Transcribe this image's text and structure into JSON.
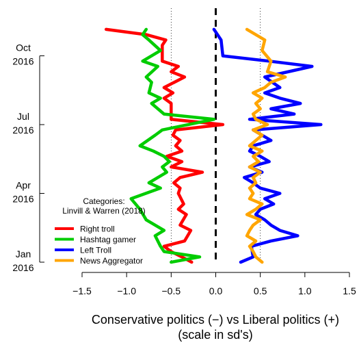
{
  "chart_data": {
    "type": "line",
    "orientation": "horizontal-x-value, vertical-y-date",
    "title": "",
    "xlabel": "Conservative politics (−) vs Liberal politics (+)",
    "xlabel_sub": "(scale in sd's)",
    "ylabel": "",
    "xlim": [
      -1.5,
      1.5
    ],
    "x_ticks": [
      -1.5,
      -1.0,
      -0.5,
      0.0,
      0.5,
      1.0,
      1.5
    ],
    "x_tick_labels": [
      "−1.5",
      "−1.0",
      "−0.5",
      "0.0",
      "0.5",
      "1.0",
      "1.5"
    ],
    "y_ticks": [
      {
        "label1": "Jan",
        "label2": "2016",
        "t": 0
      },
      {
        "label1": "Apr",
        "label2": "2016",
        "t": 13
      },
      {
        "label1": "Jul",
        "label2": "2016",
        "t": 26
      },
      {
        "label1": "Oct",
        "label2": "2016",
        "t": 39
      }
    ],
    "y_unit": "weeks since Jan 2016",
    "ylim": [
      0,
      48
    ],
    "reference_lines": {
      "dashed_bold": 0.0,
      "dotted": [
        -0.5,
        0.5
      ]
    },
    "legend": {
      "title_line1": "Categories:",
      "title_line2": "Linvill & Warren (2018)",
      "placement": "bottom-left"
    },
    "series": [
      {
        "name": "Right troll",
        "color": "#ff0000",
        "points": [
          [
            -0.27,
            0
          ],
          [
            -0.38,
            1
          ],
          [
            -0.5,
            2
          ],
          [
            -0.58,
            3
          ],
          [
            -0.35,
            4
          ],
          [
            -0.28,
            6
          ],
          [
            -0.4,
            7
          ],
          [
            -0.33,
            9
          ],
          [
            -0.42,
            10
          ],
          [
            -0.36,
            11
          ],
          [
            -0.42,
            13
          ],
          [
            -0.4,
            14
          ],
          [
            -0.47,
            15
          ],
          [
            -0.4,
            16
          ],
          [
            -0.15,
            17
          ],
          [
            -0.5,
            18
          ],
          [
            -0.38,
            19
          ],
          [
            -0.55,
            20
          ],
          [
            -0.38,
            21
          ],
          [
            -0.45,
            22
          ],
          [
            -0.4,
            23
          ],
          [
            -0.48,
            24
          ],
          [
            -0.45,
            25
          ],
          [
            0.08,
            26
          ],
          [
            -0.5,
            27
          ],
          [
            -0.5,
            30
          ],
          [
            -0.58,
            31
          ],
          [
            -0.48,
            32
          ],
          [
            -0.58,
            33
          ],
          [
            -0.35,
            35
          ],
          [
            -0.5,
            36
          ],
          [
            -0.42,
            37
          ],
          [
            -0.6,
            38
          ],
          [
            -0.6,
            41
          ],
          [
            -0.56,
            42
          ],
          [
            -0.78,
            43
          ],
          [
            -1.23,
            44
          ]
        ]
      },
      {
        "name": "Hashtag gamer",
        "color": "#00cc00",
        "points": [
          [
            -0.5,
            0
          ],
          [
            -0.18,
            1
          ],
          [
            -0.58,
            2
          ],
          [
            -0.62,
            3
          ],
          [
            -0.68,
            5
          ],
          [
            -0.58,
            6
          ],
          [
            -0.78,
            8
          ],
          [
            -0.85,
            10
          ],
          [
            -0.95,
            12
          ],
          [
            -0.62,
            14
          ],
          [
            -0.75,
            15
          ],
          [
            -0.55,
            17
          ],
          [
            -0.6,
            18
          ],
          [
            -0.52,
            19
          ],
          [
            -0.58,
            20
          ],
          [
            -0.7,
            21
          ],
          [
            -0.85,
            22
          ],
          [
            -0.68,
            24
          ],
          [
            -0.6,
            25
          ],
          [
            -0.02,
            27
          ],
          [
            -0.58,
            28
          ],
          [
            -0.72,
            30
          ],
          [
            -0.62,
            31
          ],
          [
            -0.75,
            32
          ],
          [
            -0.72,
            34
          ],
          [
            -0.78,
            35
          ],
          [
            -0.65,
            37
          ],
          [
            -0.82,
            38
          ],
          [
            -0.62,
            40
          ],
          [
            -0.75,
            42
          ],
          [
            -0.82,
            43
          ],
          [
            -0.78,
            44
          ]
        ]
      },
      {
        "name": "Left Troll",
        "color": "#0000ff",
        "points": [
          [
            0.28,
            0
          ],
          [
            0.42,
            1
          ],
          [
            0.4,
            3
          ],
          [
            0.62,
            4
          ],
          [
            0.92,
            5
          ],
          [
            0.72,
            6
          ],
          [
            0.62,
            7
          ],
          [
            0.55,
            8
          ],
          [
            0.45,
            9
          ],
          [
            0.5,
            10
          ],
          [
            0.65,
            11
          ],
          [
            0.55,
            12
          ],
          [
            0.72,
            13
          ],
          [
            0.5,
            14
          ],
          [
            0.42,
            15
          ],
          [
            0.32,
            16
          ],
          [
            0.52,
            17
          ],
          [
            0.38,
            18
          ],
          [
            0.6,
            19
          ],
          [
            0.5,
            20
          ],
          [
            0.38,
            21
          ],
          [
            0.42,
            22
          ],
          [
            0.62,
            23
          ],
          [
            0.52,
            24
          ],
          [
            0.42,
            25
          ],
          [
            1.18,
            26
          ],
          [
            0.38,
            27
          ],
          [
            0.88,
            28
          ],
          [
            0.62,
            29
          ],
          [
            0.95,
            30
          ],
          [
            0.72,
            31
          ],
          [
            0.55,
            32
          ],
          [
            0.72,
            33
          ],
          [
            0.55,
            35
          ],
          [
            1.08,
            37
          ],
          [
            0.6,
            38
          ],
          [
            0.08,
            39
          ],
          [
            0.06,
            42
          ],
          [
            -0.02,
            44
          ]
        ]
      },
      {
        "name": "News Aggregator",
        "color": "#ffa500",
        "points": [
          [
            0.52,
            0
          ],
          [
            0.45,
            1
          ],
          [
            0.42,
            2
          ],
          [
            0.38,
            3
          ],
          [
            0.45,
            4
          ],
          [
            0.35,
            5
          ],
          [
            0.38,
            6
          ],
          [
            0.42,
            7
          ],
          [
            0.5,
            8
          ],
          [
            0.35,
            9
          ],
          [
            0.45,
            10
          ],
          [
            0.52,
            11
          ],
          [
            0.38,
            12
          ],
          [
            0.42,
            13
          ],
          [
            0.38,
            14
          ],
          [
            0.45,
            15
          ],
          [
            0.42,
            16
          ],
          [
            0.5,
            17
          ],
          [
            0.38,
            18
          ],
          [
            0.48,
            19
          ],
          [
            0.42,
            20
          ],
          [
            0.52,
            21
          ],
          [
            0.38,
            22
          ],
          [
            0.45,
            23
          ],
          [
            0.52,
            24
          ],
          [
            0.42,
            25
          ],
          [
            0.58,
            26
          ],
          [
            0.45,
            27
          ],
          [
            0.42,
            28
          ],
          [
            0.5,
            29
          ],
          [
            0.45,
            30
          ],
          [
            0.52,
            31
          ],
          [
            0.42,
            32
          ],
          [
            0.55,
            33
          ],
          [
            0.62,
            34
          ],
          [
            0.78,
            35
          ],
          [
            0.58,
            36
          ],
          [
            0.62,
            38
          ],
          [
            0.52,
            40
          ],
          [
            0.55,
            42
          ],
          [
            0.35,
            44
          ]
        ]
      }
    ]
  }
}
